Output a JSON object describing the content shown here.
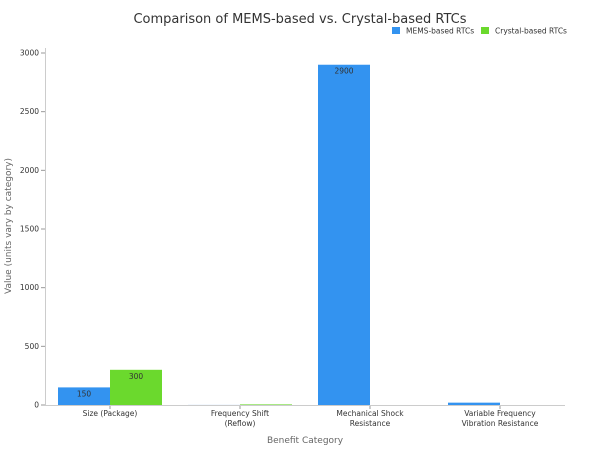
{
  "chart_data": {
    "type": "bar",
    "title": "Comparison of MEMS-based vs. Crystal-based RTCs",
    "xlabel": "Benefit Category",
    "ylabel": "Value (units vary by category)",
    "categories": [
      [
        "Size (Package)"
      ],
      [
        "Frequency Shift",
        "(Reflow)"
      ],
      [
        "Mechanical Shock",
        "Resistance"
      ],
      [
        "Variable Frequency",
        "Vibration Resistance"
      ]
    ],
    "series": [
      {
        "name": "MEMS-based RTCs",
        "color": "#3393f0",
        "values": [
          150,
          0.5,
          2900,
          20
        ],
        "labels": [
          "150",
          "",
          "2900",
          ""
        ]
      },
      {
        "name": "Crystal-based RTCs",
        "color": "#6bd92d",
        "values": [
          300,
          5,
          0,
          0
        ],
        "labels": [
          "300",
          "",
          "",
          ""
        ]
      }
    ],
    "ylim": [
      0,
      3000
    ],
    "yticks": [
      0,
      500,
      1000,
      1500,
      2000,
      2500,
      3000
    ],
    "legend_position": "top-right",
    "grid": false
  }
}
